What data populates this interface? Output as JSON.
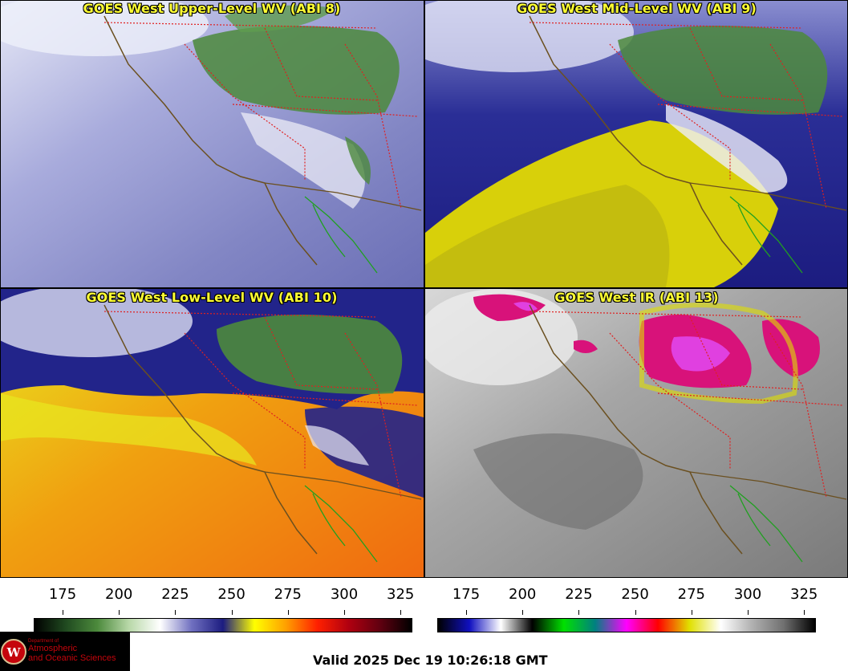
{
  "panels": [
    {
      "title": "GOES West Upper-Level WV (ABI 8)",
      "base": "#8a8ec8",
      "bright": "#d8daf0",
      "cloud": "#4c8a3c"
    },
    {
      "title": "GOES West Mid-Level WV (ABI 9)",
      "base": "#2a2e96",
      "bright": "#c8cae8",
      "cloud": "#4c8a3c",
      "dry": "#d8d00a"
    },
    {
      "title": "GOES West Low-Level WV (ABI 10)",
      "base": "#f08a10",
      "bright": "#e8e820",
      "cloud": "#4c8a3c",
      "moist": "#22248a"
    },
    {
      "title": "GOES West IR (ABI 13)",
      "base": "#8c8c8c",
      "bright": "#d8d8d8",
      "cold": "#d8127a",
      "coldest": "#e040e0"
    }
  ],
  "colorbars": [
    {
      "name": "wv-colorbar",
      "ticks": [
        "175",
        "200",
        "225",
        "250",
        "275",
        "300",
        "325"
      ],
      "gradient": [
        "#000000",
        "#204a20",
        "#4c8a3c",
        "#b8d8a8",
        "#ffffff",
        "#7070c0",
        "#1c1c80",
        "#ffff00",
        "#ffa000",
        "#ff2000",
        "#b00010",
        "#600010",
        "#000000"
      ]
    },
    {
      "name": "ir-colorbar",
      "ticks": [
        "175",
        "200",
        "225",
        "250",
        "275",
        "300",
        "325"
      ],
      "gradient": [
        "#000000",
        "#1010c0",
        "#ffffff",
        "#000000",
        "#00e000",
        "#008080",
        "#ff00ff",
        "#ff0000",
        "#e0e000",
        "#ffffff",
        "#b0b0b0",
        "#707070",
        "#000000"
      ]
    }
  ],
  "logo": {
    "line1": "Department of",
    "line2": "Atmospheric",
    "line3": "and Oceanic Sciences"
  },
  "valid_text": "Valid 2025 Dec 19 10:26:18 GMT",
  "colors": {
    "state_border": "#e02020",
    "coastline": "#6b5020",
    "mexico_coast": "#20a020",
    "title_text": "#ffff33"
  }
}
